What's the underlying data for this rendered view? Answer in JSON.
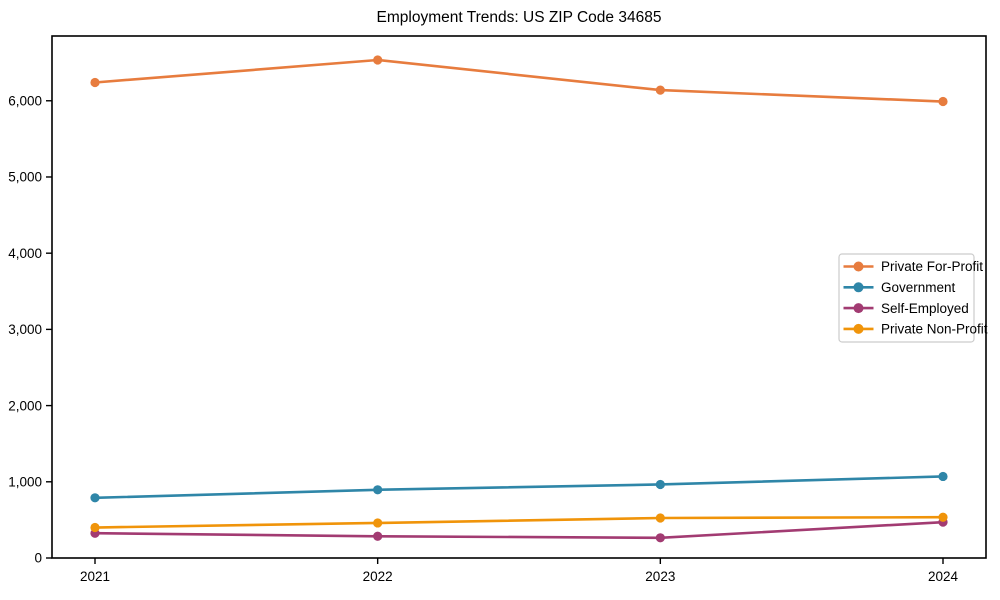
{
  "chart_data": {
    "type": "line",
    "title": "Employment Trends: US ZIP Code 34685",
    "x": [
      "2021",
      "2022",
      "2023",
      "2024"
    ],
    "xlabel": "",
    "ylabel": "",
    "ylim": [
      0,
      6850
    ],
    "yticks": [
      0,
      1000,
      2000,
      3000,
      4000,
      5000,
      6000
    ],
    "ytick_labels": [
      "0",
      "1,000",
      "2,000",
      "3,000",
      "4,000",
      "5,000",
      "6,000"
    ],
    "grid": false,
    "legend_position": "center right",
    "series": [
      {
        "name": "Private For-Profit",
        "color": "#e77c3e",
        "values": [
          6240,
          6535,
          6140,
          5990
        ]
      },
      {
        "name": "Government",
        "color": "#2f86a8",
        "values": [
          790,
          895,
          965,
          1070
        ]
      },
      {
        "name": "Self-Employed",
        "color": "#a23b72",
        "values": [
          325,
          285,
          265,
          470
        ]
      },
      {
        "name": "Private Non-Profit",
        "color": "#f0940a",
        "values": [
          400,
          460,
          525,
          535
        ]
      }
    ],
    "colors": {
      "spine": "#000000",
      "legend_border": "#cccccc",
      "background": "#ffffff"
    }
  }
}
